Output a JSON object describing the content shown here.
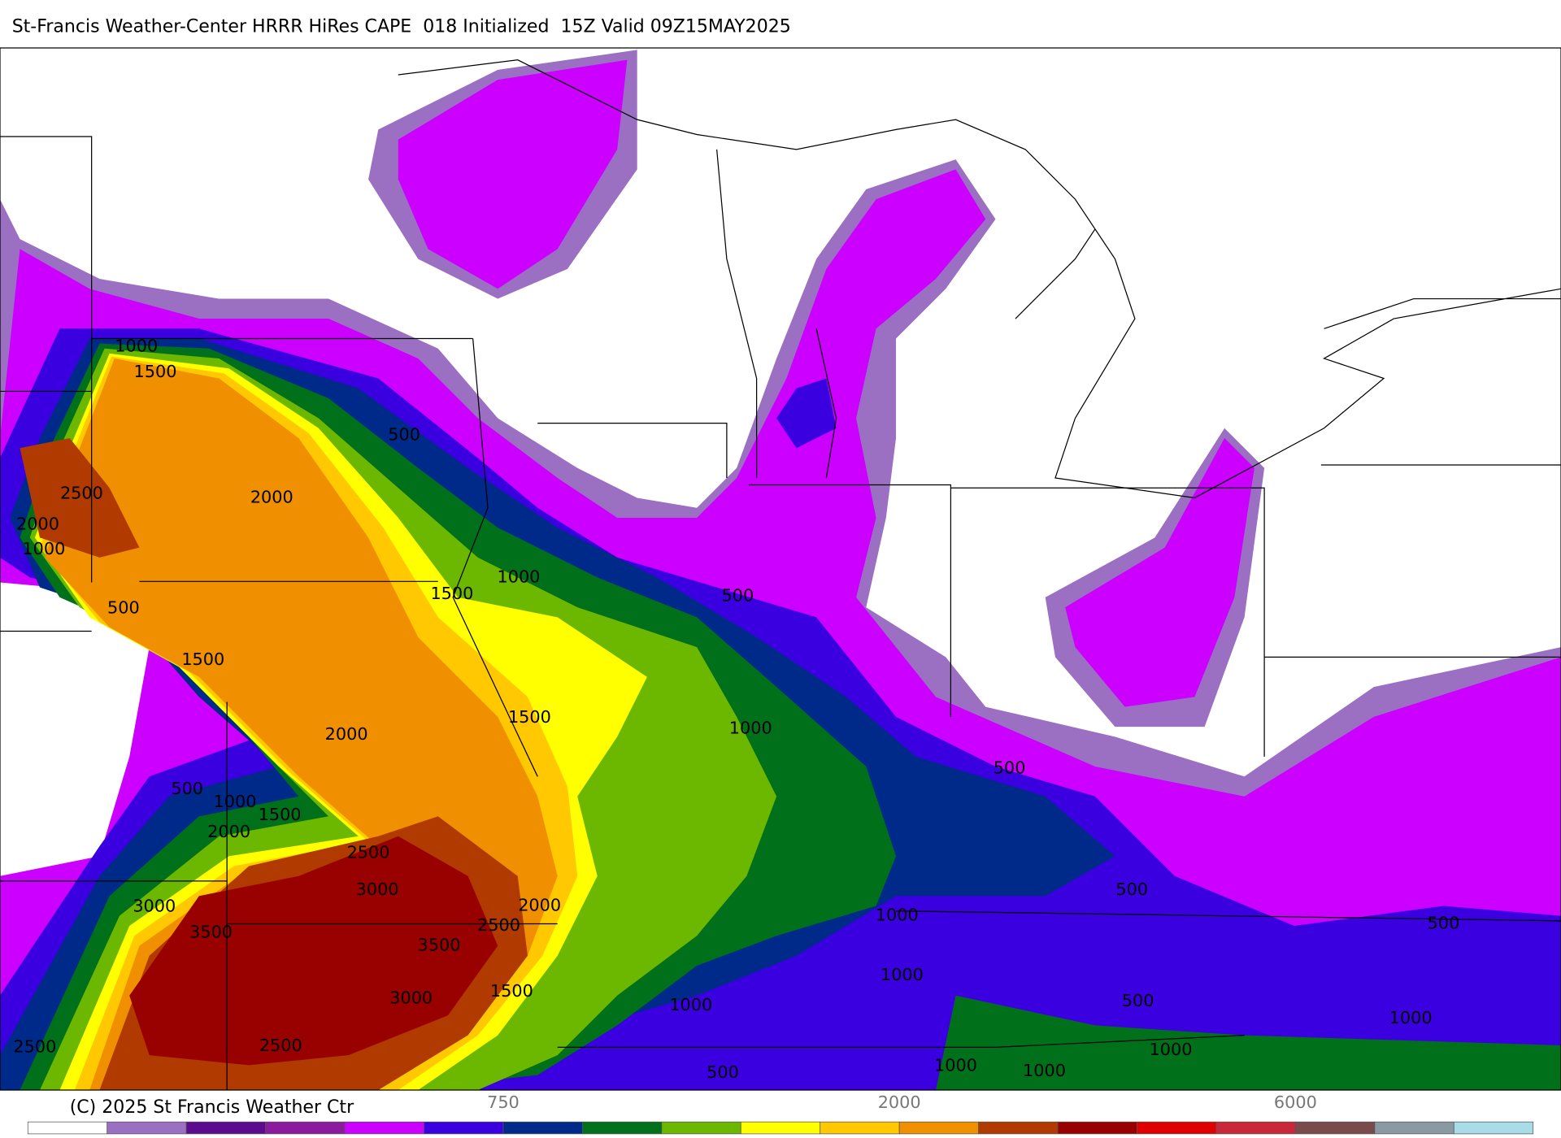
{
  "title": "St-Francis Weather-Center HRRR HiRes CAPE  018 Initialized  15Z Valid 09Z15MAY2025",
  "copyright": "(C) 2025 St Francis Weather Ctr",
  "contour_labels": [
    "1000",
    "1500",
    "500",
    "2000",
    "2500",
    "2000",
    "1000",
    "500",
    "1500",
    "1000",
    "500",
    "1500",
    "1500",
    "1000",
    "2000",
    "500",
    "1000",
    "1500",
    "2000",
    "2500",
    "3000",
    "3000",
    "2000",
    "3500",
    "2500",
    "3500",
    "1000",
    "500",
    "500",
    "500",
    "1000",
    "3000",
    "1500",
    "1000",
    "500",
    "1000",
    "1000",
    "2500",
    "2500",
    "500",
    "1000",
    "1000"
  ],
  "colorbar": {
    "colors": [
      "#ffffff",
      "#9b6fc2",
      "#5c0a8e",
      "#8b1a9e",
      "#cc00ff",
      "#3a00e0",
      "#002a8a",
      "#00701a",
      "#6cb800",
      "#ffff00",
      "#ffc800",
      "#f09000",
      "#b03a00",
      "#990000",
      "#e00000",
      "#c8283a",
      "#7a4b4b",
      "#8a9aa3",
      "#a8dce6"
    ],
    "labels": [
      750,
      2000,
      6000
    ]
  }
}
